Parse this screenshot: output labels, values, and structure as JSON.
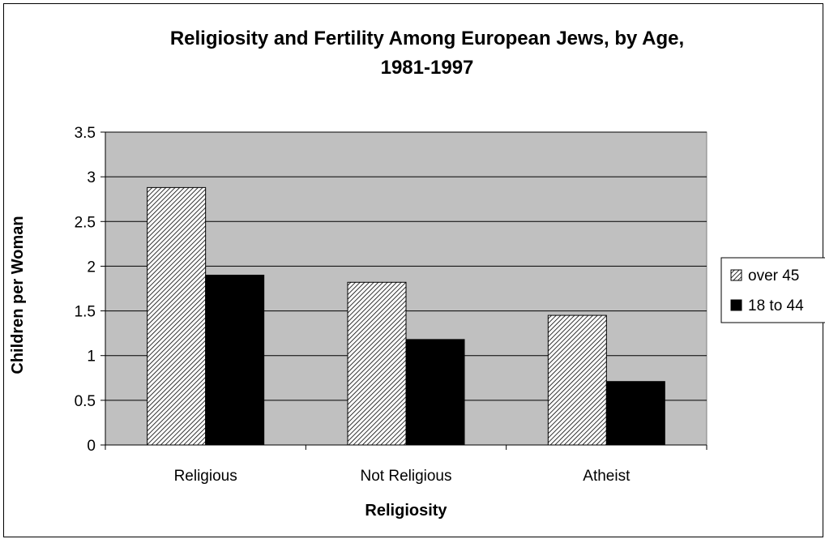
{
  "chart_data": {
    "type": "bar",
    "title_line1": "Religiosity and Fertility Among European Jews, by Age,",
    "title_line2": "1981-1997",
    "xlabel": "Religiosity",
    "ylabel": "Children per Woman",
    "categories": [
      "Religious",
      "Not Religious",
      "Atheist"
    ],
    "series": [
      {
        "name": "over 45",
        "values": [
          2.88,
          1.82,
          1.45
        ],
        "fill": "hatch"
      },
      {
        "name": "18 to 44",
        "values": [
          1.9,
          1.18,
          0.71
        ],
        "fill": "#000000"
      }
    ],
    "ylim": [
      0,
      3.5
    ],
    "yticks": [
      "0",
      "0.5",
      "1",
      "1.5",
      "2",
      "2.5",
      "3",
      "3.5"
    ],
    "plot_background": "#c0c0c0",
    "grid": true,
    "legend_position": "right"
  }
}
